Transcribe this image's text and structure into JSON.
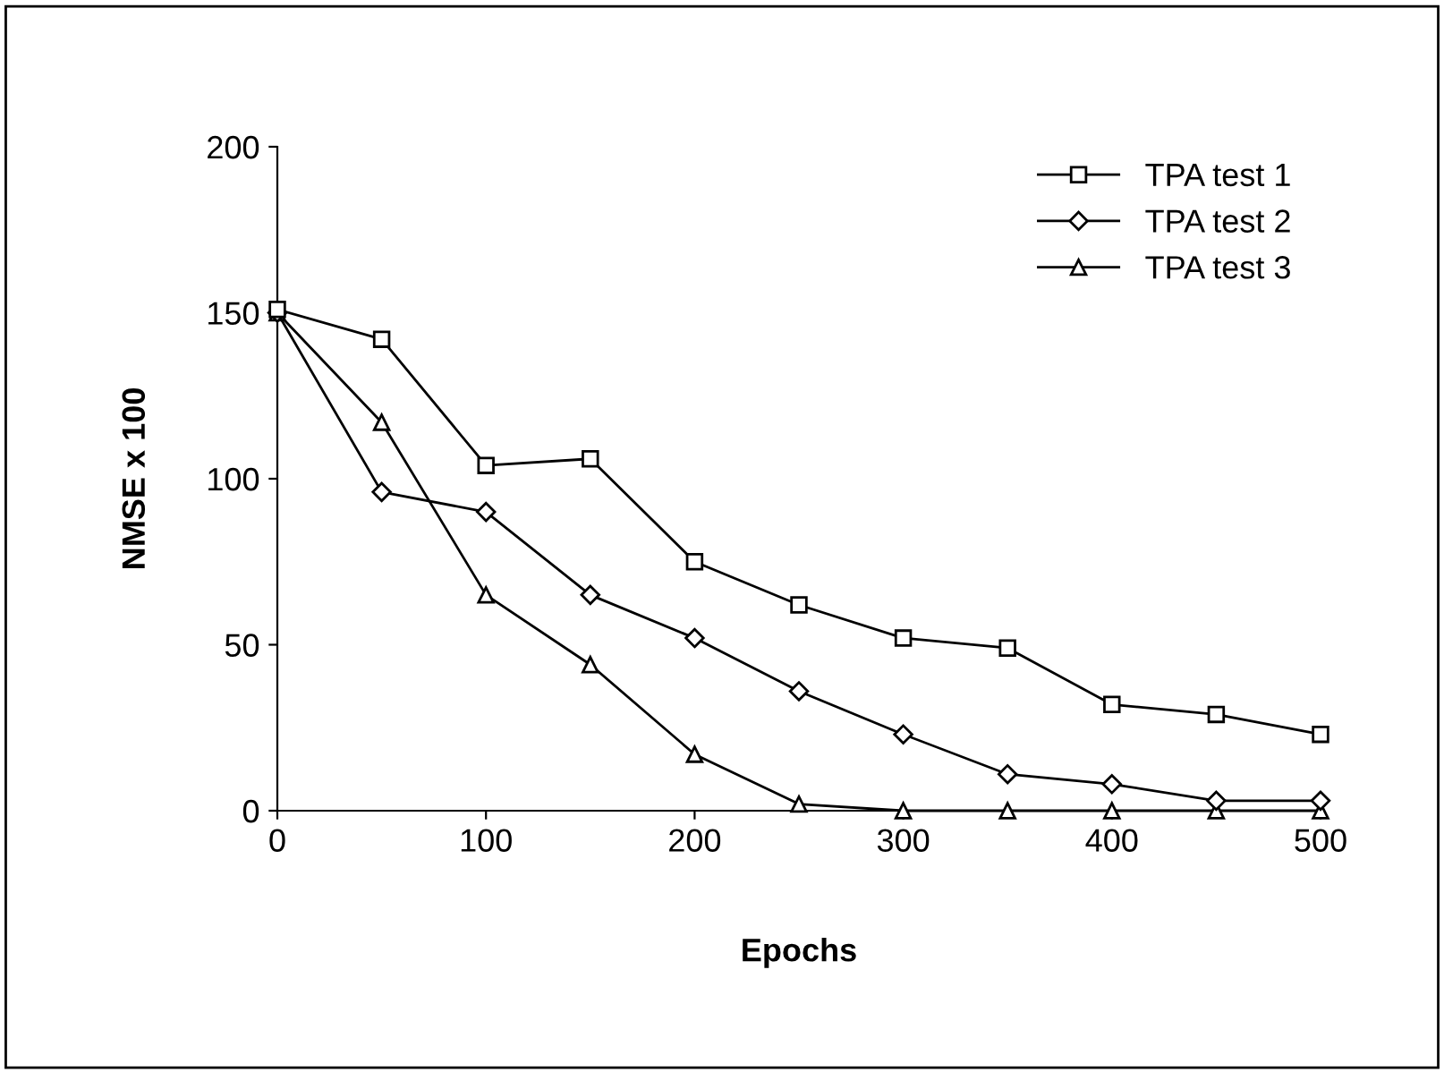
{
  "chart_data": {
    "type": "line",
    "xlabel": "Epochs",
    "ylabel": "NMSE x 100",
    "x": [
      0,
      50,
      100,
      150,
      200,
      250,
      300,
      350,
      400,
      450,
      500
    ],
    "series": [
      {
        "name": "TPA test 1",
        "color": "#000000",
        "marker": "square",
        "values": [
          151,
          142,
          104,
          106,
          75,
          62,
          52,
          49,
          32,
          29,
          23
        ]
      },
      {
        "name": "TPA test 2",
        "color": "#000000",
        "marker": "diamond",
        "values": [
          150,
          96,
          90,
          65,
          52,
          36,
          23,
          11,
          8,
          3,
          3
        ]
      },
      {
        "name": "TPA test 3",
        "color": "#000000",
        "marker": "triangle",
        "values": [
          150,
          117,
          65,
          44,
          17,
          2,
          0,
          0,
          0,
          0,
          0
        ]
      }
    ],
    "xlim": [
      0,
      500
    ],
    "ylim": [
      0,
      200
    ],
    "xticks": [
      0,
      100,
      200,
      300,
      400,
      500
    ],
    "yticks": [
      0,
      50,
      100,
      150,
      200
    ],
    "grid": false,
    "legend": "top right",
    "line_style": "solid"
  }
}
